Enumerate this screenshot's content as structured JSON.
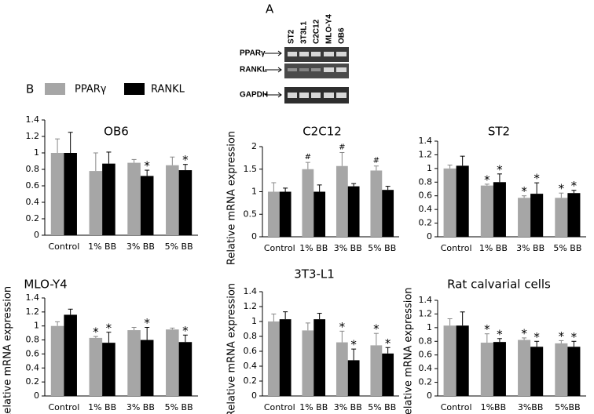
{
  "figure": {
    "panel_a_label": "A",
    "panel_b_label": "B",
    "gel": {
      "lanes": [
        "ST2",
        "3T3L1",
        "C2C12",
        "MLO-Y4",
        "OB6"
      ],
      "rows": [
        "PPARγ",
        "RANKL",
        "GAPDH"
      ]
    }
  },
  "chart_data": [
    {
      "type": "bar",
      "title": "OB6",
      "categories": [
        "Control",
        "1% BB",
        "3% BB",
        "5% BB"
      ],
      "ylim": [
        0,
        1.4
      ],
      "yticks": [
        0,
        0.2,
        0.4,
        0.6,
        0.8,
        1,
        1.2,
        1.4
      ],
      "series": [
        {
          "name": "PPARγ",
          "color": "#a6a6a6",
          "values": [
            1.0,
            0.78,
            0.88,
            0.85
          ],
          "errors": [
            0.17,
            0.22,
            0.04,
            0.1
          ],
          "annotations": [
            null,
            null,
            null,
            null
          ]
        },
        {
          "name": "RANKL",
          "color": "#000000",
          "values": [
            1.0,
            0.87,
            0.72,
            0.79
          ],
          "errors": [
            0.25,
            0.14,
            0.07,
            0.07
          ],
          "annotations": [
            null,
            null,
            "*",
            "*"
          ]
        }
      ]
    },
    {
      "type": "bar",
      "title": "C2C12",
      "ylabel": "Relative mRNA expression",
      "categories": [
        "Control",
        "1% BB",
        "3% BB",
        "5% BB"
      ],
      "ylim": [
        0,
        2
      ],
      "yticks": [
        0,
        0.5,
        1,
        1.5,
        2
      ],
      "series": [
        {
          "name": "PPARγ",
          "color": "#a6a6a6",
          "values": [
            1.0,
            1.5,
            1.57,
            1.47
          ],
          "errors": [
            0.2,
            0.15,
            0.3,
            0.1
          ],
          "annotations": [
            null,
            "#",
            "#",
            "#"
          ]
        },
        {
          "name": "RANKL",
          "color": "#000000",
          "values": [
            1.0,
            1.0,
            1.12,
            1.04
          ],
          "errors": [
            0.08,
            0.15,
            0.06,
            0.08
          ],
          "annotations": [
            null,
            null,
            null,
            null
          ]
        }
      ]
    },
    {
      "type": "bar",
      "title": "ST2",
      "categories": [
        "Control",
        "1% BB",
        "3% BB",
        "5% BB"
      ],
      "ylim": [
        0,
        1.4
      ],
      "yticks": [
        0,
        0.2,
        0.4,
        0.6,
        0.8,
        1,
        1.2,
        1.4
      ],
      "series": [
        {
          "name": "PPARγ",
          "color": "#a6a6a6",
          "values": [
            1.0,
            0.75,
            0.57,
            0.57
          ],
          "errors": [
            0.05,
            0.02,
            0.03,
            0.07
          ],
          "annotations": [
            null,
            "*",
            "*",
            "*"
          ]
        },
        {
          "name": "RANKL",
          "color": "#000000",
          "values": [
            1.04,
            0.8,
            0.63,
            0.64
          ],
          "errors": [
            0.14,
            0.12,
            0.16,
            0.04
          ],
          "annotations": [
            null,
            "*",
            "*",
            "*"
          ]
        }
      ]
    },
    {
      "type": "bar",
      "title": "MLO-Y4",
      "ylabel": "Relative mRNA expression",
      "categories": [
        "Control",
        "1% BB",
        "3% BB",
        "5% BB"
      ],
      "ylim": [
        0,
        1.4
      ],
      "yticks": [
        0,
        0.2,
        0.4,
        0.6,
        0.8,
        1,
        1.2,
        1.4
      ],
      "series": [
        {
          "name": "PPARγ",
          "color": "#a6a6a6",
          "values": [
            1.0,
            0.83,
            0.94,
            0.95
          ],
          "errors": [
            0.06,
            0.02,
            0.04,
            0.02
          ],
          "annotations": [
            null,
            "*",
            null,
            null
          ]
        },
        {
          "name": "RANKL",
          "color": "#000000",
          "values": [
            1.16,
            0.76,
            0.8,
            0.77
          ],
          "errors": [
            0.08,
            0.15,
            0.18,
            0.1
          ],
          "annotations": [
            null,
            "*",
            "*",
            "*"
          ]
        }
      ]
    },
    {
      "type": "bar",
      "title": "3T3-L1",
      "ylabel": "Relative mRNA expression",
      "categories": [
        "Control",
        "1% BB",
        "3% BB",
        "5% BB"
      ],
      "ylim": [
        0,
        1.4
      ],
      "yticks": [
        0,
        0.2,
        0.4,
        0.6,
        0.8,
        1,
        1.2,
        1.4
      ],
      "series": [
        {
          "name": "PPARγ",
          "color": "#a6a6a6",
          "values": [
            1.0,
            0.88,
            0.72,
            0.68
          ],
          "errors": [
            0.1,
            0.1,
            0.15,
            0.16
          ],
          "annotations": [
            null,
            null,
            "*",
            "*"
          ]
        },
        {
          "name": "RANKL",
          "color": "#000000",
          "values": [
            1.03,
            1.03,
            0.48,
            0.57
          ],
          "errors": [
            0.1,
            0.08,
            0.15,
            0.08
          ],
          "annotations": [
            null,
            null,
            "*",
            "*"
          ]
        }
      ]
    },
    {
      "type": "bar",
      "title": "Rat calvarial cells",
      "ylabel": "Relative mRNA expression",
      "categories": [
        "Control",
        "1%BB",
        "3%BB",
        "5%BB"
      ],
      "ylim": [
        0,
        1.4
      ],
      "yticks": [
        0,
        0.2,
        0.4,
        0.6,
        0.8,
        1,
        1.2,
        1.4
      ],
      "series": [
        {
          "name": "PPARγ",
          "color": "#a6a6a6",
          "values": [
            1.03,
            0.78,
            0.82,
            0.77
          ],
          "errors": [
            0.1,
            0.13,
            0.03,
            0.04
          ],
          "annotations": [
            null,
            "*",
            "*",
            "*"
          ]
        },
        {
          "name": "RANKL",
          "color": "#000000",
          "values": [
            1.03,
            0.79,
            0.72,
            0.72
          ],
          "errors": [
            0.2,
            0.05,
            0.08,
            0.08
          ],
          "annotations": [
            null,
            "*",
            "*",
            "*"
          ]
        }
      ]
    }
  ]
}
